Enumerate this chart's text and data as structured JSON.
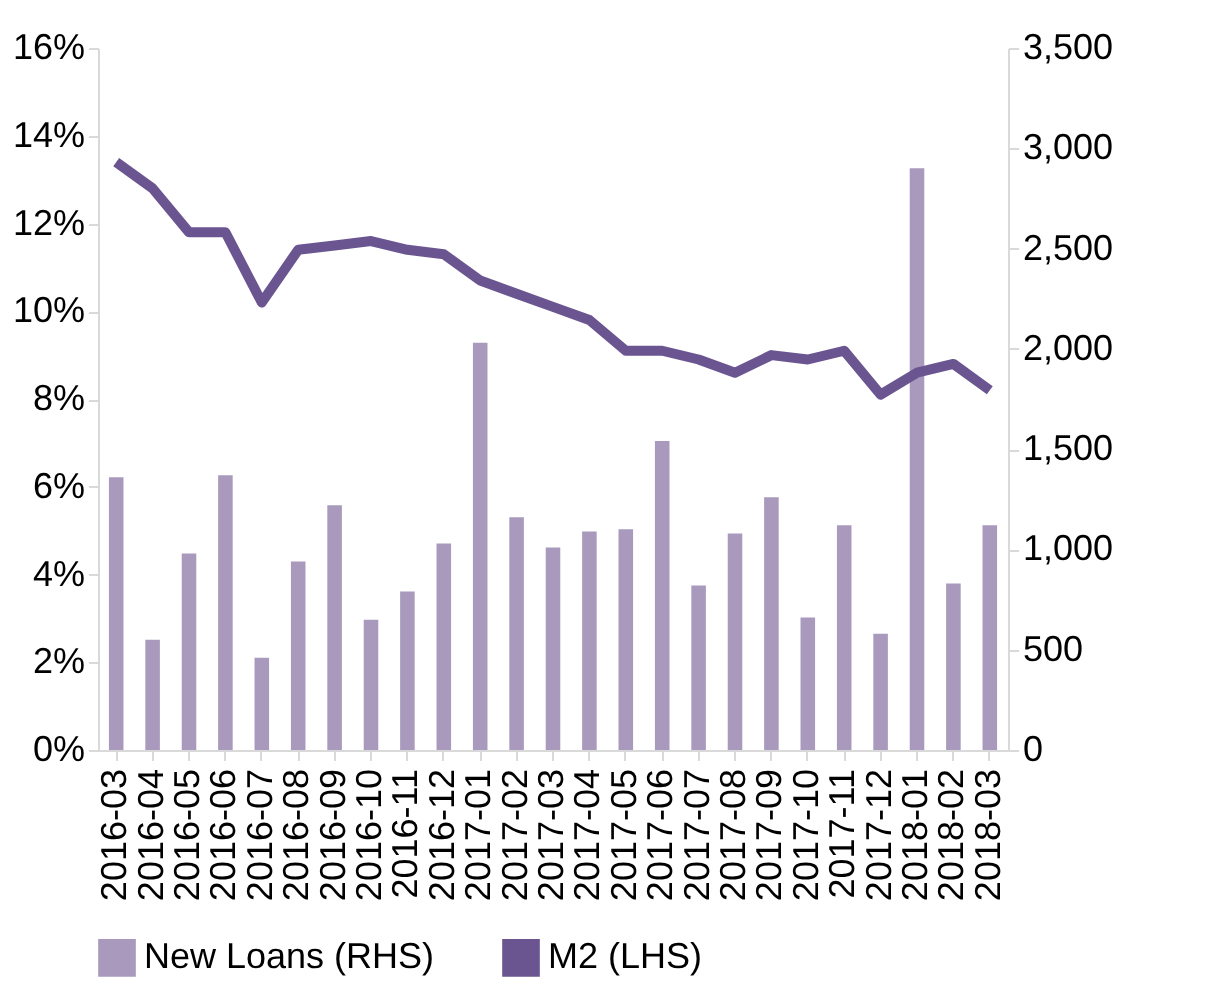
{
  "chart_data": {
    "type": "bar",
    "categories": [
      "2016-03",
      "2016-04",
      "2016-05",
      "2016-06",
      "2016-07",
      "2016-08",
      "2016-09",
      "2016-10",
      "2016-11",
      "2016-12",
      "2017-01",
      "2017-02",
      "2017-03",
      "2017-04",
      "2017-05",
      "2017-06",
      "2017-07",
      "2017-08",
      "2017-09",
      "2017-10",
      "2017-11",
      "2017-12",
      "2018-01",
      "2018-02",
      "2018-03"
    ],
    "series": [
      {
        "name": "New Loans (RHS)",
        "axis": "y2",
        "color": "#a99abd",
        "values": [
          1360,
          550,
          980,
          1370,
          460,
          940,
          1220,
          650,
          790,
          1030,
          2030,
          1160,
          1010,
          1090,
          1100,
          1540,
          820,
          1080,
          1260,
          660,
          1120,
          580,
          2900,
          830,
          1120
        ]
      },
      {
        "name": "M2 (LHS)",
        "type": "line",
        "color": "#6b5591",
        "values": [
          13.4,
          12.8,
          11.8,
          11.8,
          10.2,
          11.4,
          11.5,
          11.6,
          11.4,
          11.3,
          10.7,
          10.4,
          10.1,
          9.8,
          9.1,
          9.1,
          8.9,
          8.6,
          9.0,
          8.9,
          9.1,
          8.1,
          8.6,
          8.8,
          8.2
        ]
      }
    ],
    "ylim": [
      0,
      16
    ],
    "yticks": [
      {
        "value": 0,
        "label": "0%"
      },
      {
        "value": 2,
        "label": "2%"
      },
      {
        "value": 4,
        "label": "4%"
      },
      {
        "value": 6,
        "label": "6%"
      },
      {
        "value": 8,
        "label": "8%"
      },
      {
        "value": 10,
        "label": "10%"
      },
      {
        "value": 12,
        "label": "12%"
      },
      {
        "value": 14,
        "label": "14%"
      },
      {
        "value": 16,
        "label": "16%"
      }
    ],
    "y2lim": [
      0,
      3500
    ],
    "y2ticks": [
      0,
      500,
      {
        "value": 1000,
        "label": "1,000"
      },
      {
        "value": 1500,
        "label": "1,500"
      },
      {
        "value": 2000,
        "label": "2,000"
      },
      {
        "value": 2500,
        "label": "2,500"
      },
      {
        "value": 3000,
        "label": "3,000"
      },
      {
        "value": 3500,
        "label": "3,500"
      }
    ],
    "grid": false,
    "legend": "bottom",
    "marker": "none",
    "line_style": "solid"
  }
}
